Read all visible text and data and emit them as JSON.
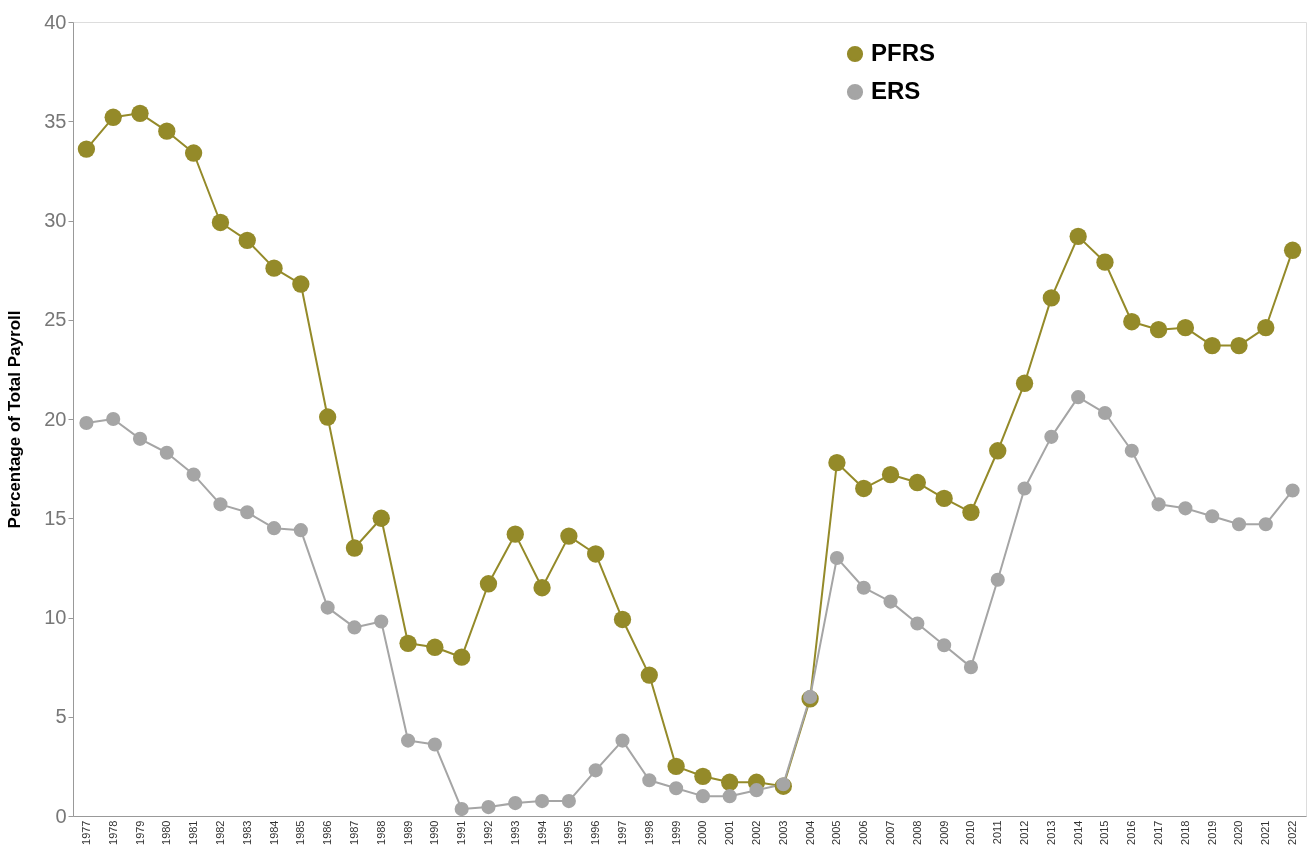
{
  "chart_data": {
    "type": "line",
    "ylabel": "Percentage of Total Payroll",
    "categories": [
      "1977",
      "1978",
      "1979",
      "1980",
      "1981",
      "1982",
      "1983",
      "1984",
      "1985",
      "1986",
      "1987",
      "1988",
      "1989",
      "1990",
      "1991",
      "1992",
      "1993",
      "1994",
      "1995",
      "1996",
      "1997",
      "1998",
      "1999",
      "2000",
      "2001",
      "2002",
      "2003",
      "2004",
      "2005",
      "2006",
      "2007",
      "2008",
      "2009",
      "2010",
      "2011",
      "2012",
      "2013",
      "2014",
      "2015",
      "2016",
      "2017",
      "2018",
      "2019",
      "2020",
      "2021",
      "2022"
    ],
    "series": [
      {
        "name": "PFRS",
        "color": "#948a29",
        "values": [
          33.6,
          35.2,
          35.4,
          34.5,
          33.4,
          29.9,
          29.0,
          27.6,
          26.8,
          20.1,
          13.5,
          15.0,
          8.7,
          8.5,
          8.0,
          11.7,
          14.2,
          11.5,
          14.1,
          13.2,
          9.9,
          7.1,
          2.5,
          2.0,
          1.7,
          1.7,
          1.5,
          5.9,
          17.8,
          16.5,
          17.2,
          16.8,
          16.0,
          15.3,
          18.4,
          21.8,
          26.1,
          29.2,
          27.9,
          24.9,
          24.5,
          24.6,
          23.7,
          23.7,
          24.6,
          28.5
        ]
      },
      {
        "name": "ERS",
        "color": "#a5a5a5",
        "values": [
          19.8,
          20.0,
          19.0,
          18.3,
          17.2,
          15.7,
          15.3,
          14.5,
          14.4,
          10.5,
          9.5,
          9.8,
          3.8,
          3.6,
          0.35,
          0.45,
          0.65,
          0.75,
          0.75,
          2.3,
          3.8,
          1.8,
          1.4,
          1.0,
          1.0,
          1.3,
          1.6,
          6.0,
          13.0,
          11.5,
          10.8,
          9.7,
          8.6,
          7.5,
          11.9,
          16.5,
          19.1,
          21.1,
          20.3,
          18.4,
          15.7,
          15.5,
          15.1,
          14.7,
          14.7,
          16.4
        ]
      }
    ],
    "ylim": [
      0,
      40
    ],
    "yticks": [
      0,
      5,
      10,
      15,
      20,
      25,
      30,
      35,
      40
    ],
    "grid": false,
    "legend": "top right",
    "marker": "circle",
    "line_style": "solid"
  }
}
